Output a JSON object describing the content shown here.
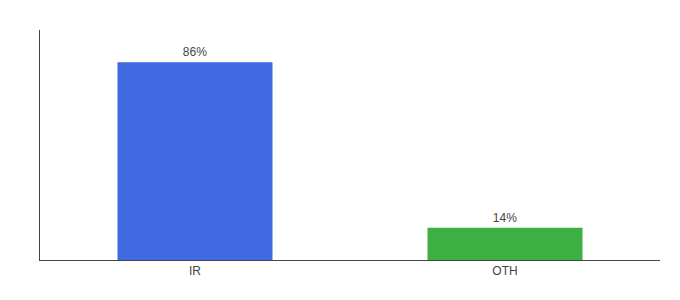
{
  "chart_data": {
    "type": "bar",
    "categories": [
      "IR",
      "OTH"
    ],
    "values": [
      86,
      14
    ],
    "value_labels": [
      "86%",
      "14%"
    ],
    "colors": [
      "#4169e1",
      "#3cb043"
    ],
    "ylim": [
      0,
      100
    ],
    "data_labels": true,
    "tick_labels": "x",
    "grid": false
  }
}
